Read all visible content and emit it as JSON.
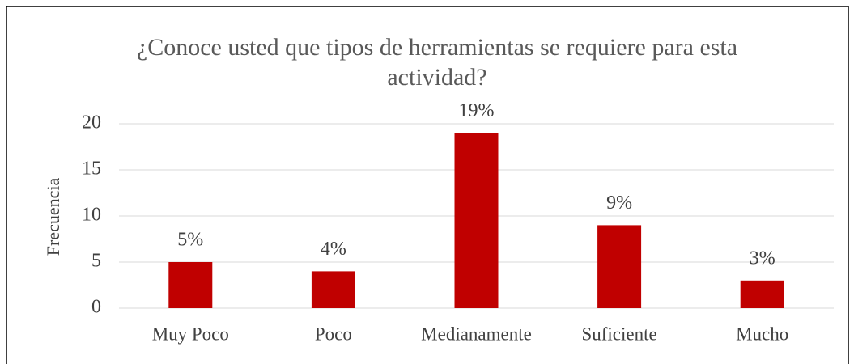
{
  "chart_data": {
    "type": "bar",
    "title": "¿Conoce usted que tipos de herramientas se requiere para esta actividad?",
    "y_label": "Frecuencia",
    "categories": [
      "Muy Poco",
      "Poco",
      "Medianamente",
      "Suficiente",
      "Mucho"
    ],
    "values": [
      5,
      4,
      19,
      9,
      3
    ],
    "value_labels": [
      "5%",
      "4%",
      "19%",
      "9%",
      "3%"
    ],
    "color": "#c00000",
    "ylim": [
      0,
      20
    ],
    "yticks": [
      0,
      5,
      10,
      15,
      20
    ],
    "grid": true
  }
}
